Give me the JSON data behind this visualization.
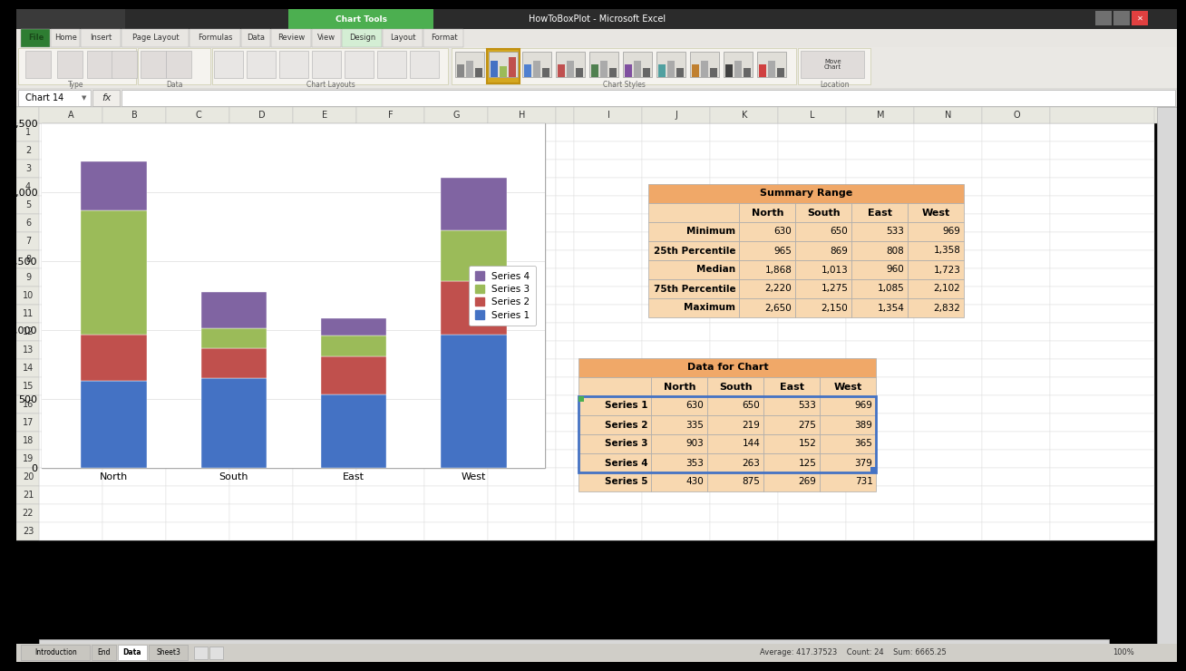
{
  "chart": {
    "categories": [
      "North",
      "South",
      "East",
      "West"
    ],
    "series": {
      "Series 1": [
        630,
        650,
        533,
        969
      ],
      "Series 2": [
        335,
        219,
        275,
        389
      ],
      "Series 3": [
        903,
        144,
        152,
        365
      ],
      "Series 4": [
        353,
        263,
        125,
        379
      ]
    },
    "colors": {
      "Series 1": "#4472C4",
      "Series 2": "#C0504D",
      "Series 3": "#9BBB59",
      "Series 4": "#8064A2"
    },
    "ylim": [
      0,
      2500
    ],
    "yticks": [
      0,
      500,
      1000,
      1500,
      2000,
      2500
    ]
  },
  "summary_table": {
    "title": "Summary Range",
    "columns": [
      "North",
      "South",
      "East",
      "West"
    ],
    "rows": {
      "Minimum": [
        630,
        650,
        533,
        969
      ],
      "25th Percentile": [
        965,
        869,
        808,
        1358
      ],
      "Median": [
        1868,
        1013,
        960,
        1723
      ],
      "75th Percentile": [
        2220,
        1275,
        1085,
        2102
      ],
      "Maximum": [
        2650,
        2150,
        1354,
        2832
      ]
    }
  },
  "data_table": {
    "title": "Data for Chart",
    "columns": [
      "North",
      "South",
      "East",
      "West"
    ],
    "rows": {
      "Series 1": [
        630,
        650,
        533,
        969
      ],
      "Series 2": [
        335,
        219,
        275,
        389
      ],
      "Series 3": [
        903,
        144,
        152,
        365
      ],
      "Series 4": [
        353,
        263,
        125,
        379
      ],
      "Series 5": [
        430,
        875,
        269,
        731
      ]
    }
  },
  "titlebar_bg": "#1C3F6E",
  "titlebar_text": "HowToBoxPlot - Microsoft Excel",
  "ribbon_bg": "#DCDBD9",
  "ribbon_tab_active_bg": "#4CAF50",
  "excel_bg": "#C8C8C8",
  "cell_bg": "#FFFFFF",
  "table_header_bg": "#F0A868",
  "table_row_bg": "#F8D8B0",
  "col_header_bg": "#E8E8E0",
  "row_header_bg": "#E8E8E0",
  "grid_line": "#CCCCCC",
  "chart_bg": "#FFFFFF",
  "status_bar_bg": "#D8D8D8",
  "tab_active_bg": "#FFFFFF",
  "tab_inactive_bg": "#D0CFC8"
}
